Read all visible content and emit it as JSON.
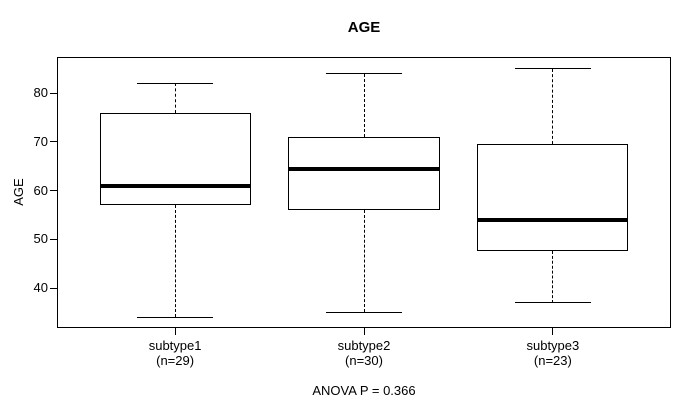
{
  "chart_data": {
    "type": "boxplot",
    "title": "AGE",
    "ylabel": "AGE",
    "xlabel": "",
    "annotation": "ANOVA P = 0.366",
    "grid": false,
    "legend": null,
    "ylim": [
      32,
      87.2
    ],
    "yticks": [
      40,
      50,
      60,
      70,
      80
    ],
    "xlim": [
      0.38,
      3.62
    ],
    "box_halfwidth": 0.4,
    "cap_halfwidth": 0.2,
    "groups": [
      {
        "label": "subtype1",
        "sublabel": "(n=29)",
        "x": 1,
        "whisker_low": 34,
        "q1": 57,
        "median": 61,
        "q3": 76,
        "whisker_high": 82
      },
      {
        "label": "subtype2",
        "sublabel": "(n=30)",
        "x": 2,
        "whisker_low": 35,
        "q1": 56,
        "median": 64.5,
        "q3": 71,
        "whisker_high": 84
      },
      {
        "label": "subtype3",
        "sublabel": "(n=23)",
        "x": 3,
        "whisker_low": 37,
        "q1": 47.5,
        "median": 54,
        "q3": 69.5,
        "whisker_high": 85
      }
    ],
    "colors": {
      "line": "#000000",
      "median": "#000000",
      "background": "#ffffff",
      "text": "#000000"
    }
  }
}
